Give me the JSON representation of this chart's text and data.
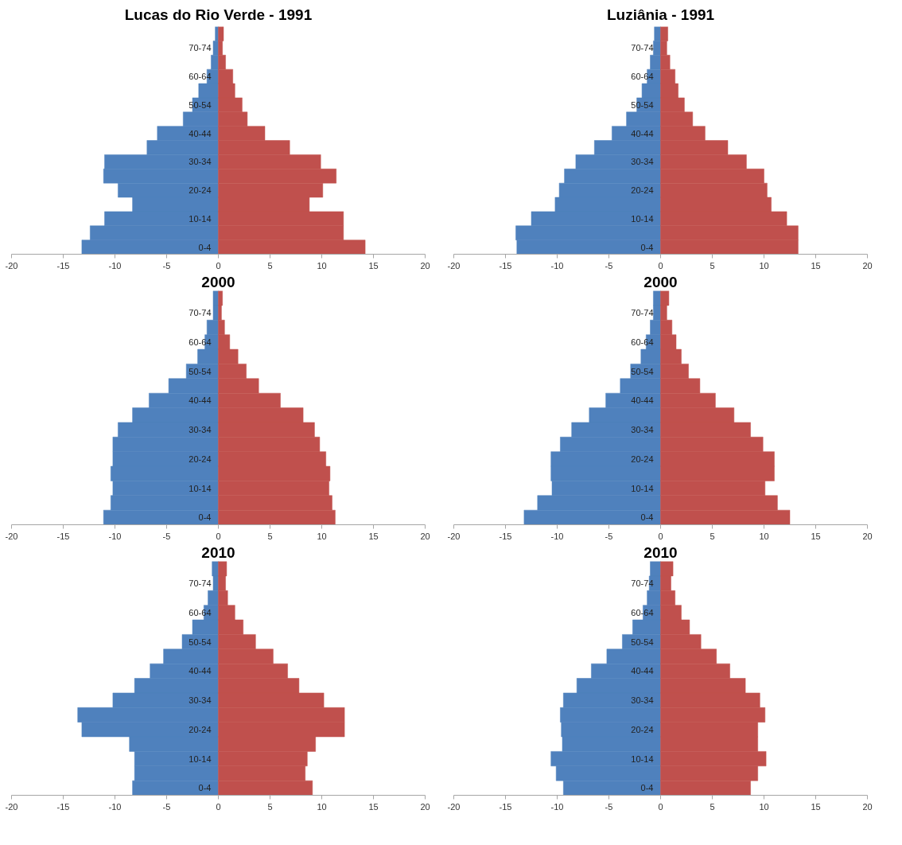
{
  "chart_data": [
    {
      "type": "bar",
      "orientation": "horizontal",
      "stacked": true,
      "title": "Lucas do Rio Verde - 1991",
      "categories": [
        null,
        "70-74",
        null,
        "60-64",
        null,
        "50-54",
        null,
        "40-44",
        null,
        "30-34",
        null,
        "20-24",
        null,
        "10-14",
        null,
        "0-4"
      ],
      "xlim": [
        -20,
        20
      ],
      "xticks": [
        -20,
        -15,
        -10,
        -5,
        0,
        5,
        10,
        15,
        20
      ],
      "series": [
        {
          "color": "#4f81bd",
          "values": [
            -0.3,
            -0.5,
            -0.7,
            -1.1,
            -1.9,
            -2.5,
            -3.4,
            -5.9,
            -6.9,
            -11.0,
            -11.1,
            -9.7,
            -8.3,
            -11.0,
            -12.4,
            -13.2
          ]
        },
        {
          "color": "#c0504d",
          "values": [
            0.5,
            0.4,
            0.7,
            1.4,
            1.6,
            2.3,
            2.8,
            4.5,
            6.9,
            9.9,
            11.4,
            10.1,
            8.8,
            12.1,
            12.1,
            14.2
          ]
        }
      ]
    },
    {
      "type": "bar",
      "orientation": "horizontal",
      "stacked": true,
      "title": "Luziânia - 1991",
      "categories": [
        null,
        "70-74",
        null,
        "60-64",
        null,
        "50-54",
        null,
        "40-44",
        null,
        "30-34",
        null,
        "20-24",
        null,
        "10-14",
        null,
        "0-4"
      ],
      "xlim": [
        -20,
        20
      ],
      "xticks": [
        -20,
        -15,
        -10,
        -5,
        0,
        5,
        10,
        15,
        20
      ],
      "series": [
        {
          "color": "#4f81bd",
          "values": [
            -0.6,
            -0.7,
            -1.0,
            -1.3,
            -1.8,
            -2.3,
            -3.3,
            -4.7,
            -6.4,
            -8.2,
            -9.3,
            -9.8,
            -10.2,
            -12.5,
            -14.0,
            -13.9
          ]
        },
        {
          "color": "#c0504d",
          "values": [
            0.7,
            0.6,
            0.9,
            1.4,
            1.7,
            2.3,
            3.1,
            4.3,
            6.5,
            8.3,
            10.0,
            10.3,
            10.7,
            12.2,
            13.3,
            13.3
          ]
        }
      ]
    },
    {
      "type": "bar",
      "orientation": "horizontal",
      "stacked": true,
      "title": "2000",
      "categories": [
        null,
        "70-74",
        null,
        "60-64",
        null,
        "50-54",
        null,
        "40-44",
        null,
        "30-34",
        null,
        "20-24",
        null,
        "10-14",
        null,
        "0-4"
      ],
      "xlim": [
        -20,
        20
      ],
      "xticks": [
        -20,
        -15,
        -10,
        -5,
        0,
        5,
        10,
        15,
        20
      ],
      "series": [
        {
          "color": "#4f81bd",
          "values": [
            -0.5,
            -0.5,
            -1.1,
            -1.3,
            -2.0,
            -3.1,
            -4.8,
            -6.7,
            -8.3,
            -9.7,
            -10.2,
            -10.2,
            -10.4,
            -10.2,
            -10.4,
            -11.1
          ]
        },
        {
          "color": "#c0504d",
          "values": [
            0.4,
            0.3,
            0.6,
            1.1,
            1.9,
            2.7,
            3.9,
            6.0,
            8.2,
            9.3,
            9.8,
            10.4,
            10.8,
            10.7,
            11.0,
            11.3
          ]
        }
      ]
    },
    {
      "type": "bar",
      "orientation": "horizontal",
      "stacked": true,
      "title": "2000",
      "categories": [
        null,
        "70-74",
        null,
        "60-64",
        null,
        "50-54",
        null,
        "40-44",
        null,
        "30-34",
        null,
        "20-24",
        null,
        "10-14",
        null,
        "0-4"
      ],
      "xlim": [
        -20,
        20
      ],
      "xticks": [
        -20,
        -15,
        -10,
        -5,
        0,
        5,
        10,
        15,
        20
      ],
      "series": [
        {
          "color": "#4f81bd",
          "values": [
            -0.7,
            -0.7,
            -1.0,
            -1.4,
            -1.9,
            -2.9,
            -3.9,
            -5.3,
            -6.9,
            -8.6,
            -9.7,
            -10.6,
            -10.6,
            -10.5,
            -11.9,
            -13.2
          ]
        },
        {
          "color": "#c0504d",
          "values": [
            0.8,
            0.6,
            1.1,
            1.5,
            2.0,
            2.7,
            3.8,
            5.3,
            7.1,
            8.7,
            9.9,
            11.0,
            11.0,
            10.1,
            11.3,
            12.5
          ]
        }
      ]
    },
    {
      "type": "bar",
      "orientation": "horizontal",
      "stacked": true,
      "title": "2010",
      "categories": [
        null,
        "70-74",
        null,
        "60-64",
        null,
        "50-54",
        null,
        "40-44",
        null,
        "30-34",
        null,
        "20-24",
        null,
        "10-14",
        null,
        "0-4"
      ],
      "xlim": [
        -20,
        20
      ],
      "xticks": [
        -20,
        -15,
        -10,
        -5,
        0,
        5,
        10,
        15,
        20
      ],
      "series": [
        {
          "color": "#4f81bd",
          "values": [
            -0.6,
            -0.5,
            -1.0,
            -1.4,
            -2.5,
            -3.5,
            -5.3,
            -6.6,
            -8.1,
            -10.2,
            -13.6,
            -13.2,
            -8.6,
            -8.1,
            -8.1,
            -8.3
          ]
        },
        {
          "color": "#c0504d",
          "values": [
            0.8,
            0.7,
            0.9,
            1.6,
            2.4,
            3.6,
            5.3,
            6.7,
            7.8,
            10.2,
            12.2,
            12.2,
            9.4,
            8.6,
            8.4,
            9.1
          ]
        }
      ]
    },
    {
      "type": "bar",
      "orientation": "horizontal",
      "stacked": true,
      "title": "2010",
      "categories": [
        null,
        "70-74",
        null,
        "60-64",
        null,
        "50-54",
        null,
        "40-44",
        null,
        "30-34",
        null,
        "20-24",
        null,
        "10-14",
        null,
        "0-4"
      ],
      "xlim": [
        -20,
        20
      ],
      "xticks": [
        -20,
        -15,
        -10,
        -5,
        0,
        5,
        10,
        15,
        20
      ],
      "series": [
        {
          "color": "#4f81bd",
          "values": [
            -1.0,
            -1.1,
            -1.3,
            -1.7,
            -2.7,
            -3.7,
            -5.2,
            -6.7,
            -8.1,
            -9.4,
            -9.7,
            -9.6,
            -9.5,
            -10.6,
            -10.1,
            -9.4
          ]
        },
        {
          "color": "#c0504d",
          "values": [
            1.2,
            1.0,
            1.4,
            2.0,
            2.8,
            3.9,
            5.4,
            6.7,
            8.2,
            9.6,
            10.1,
            9.4,
            9.4,
            10.2,
            9.4,
            8.7
          ]
        }
      ]
    }
  ]
}
